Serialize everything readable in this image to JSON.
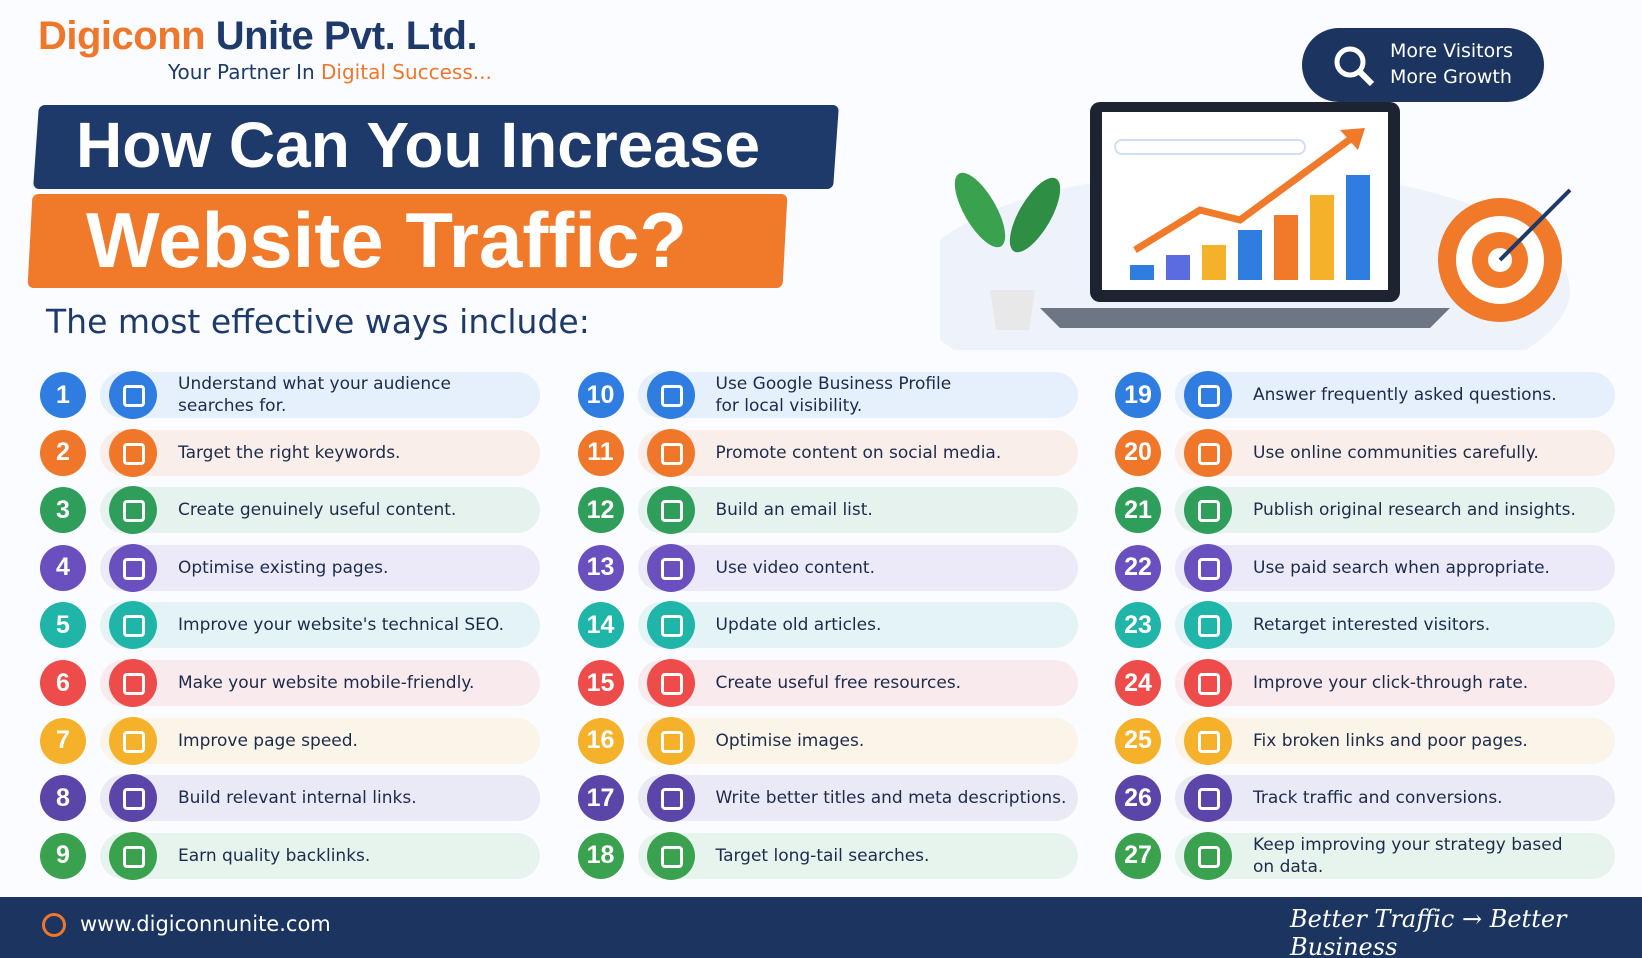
{
  "header": {
    "brand_first": "Digiconn",
    "brand_rest": "Unite Pvt. Ltd.",
    "tagline_start": "Your Partner In",
    "tagline_end": "Digital Success...",
    "title_line1": "How Can You Increase",
    "title_line2": "Website Traffic?",
    "subtitle": "The most effective ways include:"
  },
  "badge": {
    "line1": "More Visitors",
    "line2": "More Growth"
  },
  "items": [
    {
      "number": 1,
      "lines": [
        "Understand what your audience",
        "searches for."
      ]
    },
    {
      "number": 2,
      "lines": [
        "Target the right keywords."
      ]
    },
    {
      "number": 3,
      "lines": [
        "Create genuinely useful content."
      ]
    },
    {
      "number": 4,
      "lines": [
        "Optimise existing pages."
      ]
    },
    {
      "number": 5,
      "lines": [
        "Improve your website's technical SEO."
      ]
    },
    {
      "number": 6,
      "lines": [
        "Make your website mobile-friendly."
      ]
    },
    {
      "number": 7,
      "lines": [
        "Improve page speed."
      ]
    },
    {
      "number": 8,
      "lines": [
        "Build relevant internal links."
      ]
    },
    {
      "number": 9,
      "lines": [
        "Earn quality backlinks."
      ]
    },
    {
      "number": 10,
      "lines": [
        "Use Google Business Profile",
        "for local visibility."
      ]
    },
    {
      "number": 11,
      "lines": [
        "Promote content on social media."
      ]
    },
    {
      "number": 12,
      "lines": [
        "Build an email list."
      ]
    },
    {
      "number": 13,
      "lines": [
        "Use video content."
      ]
    },
    {
      "number": 14,
      "lines": [
        "Update old articles."
      ]
    },
    {
      "number": 15,
      "lines": [
        "Create useful free resources."
      ]
    },
    {
      "number": 16,
      "lines": [
        "Optimise images."
      ]
    },
    {
      "number": 17,
      "lines": [
        "Write better titles and meta descriptions."
      ]
    },
    {
      "number": 18,
      "lines": [
        "Target long-tail searches."
      ]
    },
    {
      "number": 19,
      "lines": [
        "Answer frequently asked questions."
      ]
    },
    {
      "number": 20,
      "lines": [
        "Use online communities carefully."
      ]
    },
    {
      "number": 21,
      "lines": [
        "Publish original research and insights."
      ]
    },
    {
      "number": 22,
      "lines": [
        "Use paid search when appropriate."
      ]
    },
    {
      "number": 23,
      "lines": [
        "Retarget interested visitors."
      ]
    },
    {
      "number": 24,
      "lines": [
        "Improve your click-through rate."
      ]
    },
    {
      "number": 25,
      "lines": [
        "Fix broken links and poor pages."
      ]
    },
    {
      "number": 26,
      "lines": [
        "Track traffic and conversions."
      ]
    },
    {
      "number": 27,
      "lines": [
        "Keep improving your strategy based",
        "on data."
      ]
    }
  ],
  "footer": {
    "website": "www.digiconnunite.com",
    "slogan_start": "Better Traffic",
    "slogan_end": "Better Business"
  }
}
